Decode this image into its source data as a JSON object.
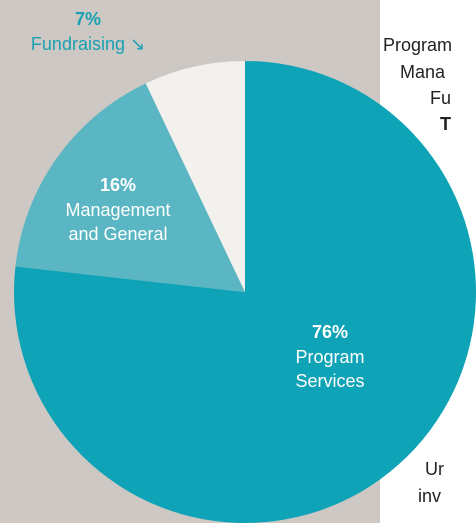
{
  "chart_data": {
    "type": "pie",
    "categories": [
      [
        "Program",
        "Services"
      ],
      [
        "Management",
        "and General"
      ],
      [
        "Fundraising ↘"
      ]
    ],
    "values": [
      76,
      16,
      7
    ],
    "value_labels": [
      "76%",
      "16%",
      "7%"
    ],
    "colors": [
      "#0fa3b7",
      "#5ab6c2",
      "#f3f1ee"
    ]
  },
  "side_text": [
    "Program",
    "Mana",
    "Fu",
    "T",
    "Ur",
    "inv"
  ]
}
